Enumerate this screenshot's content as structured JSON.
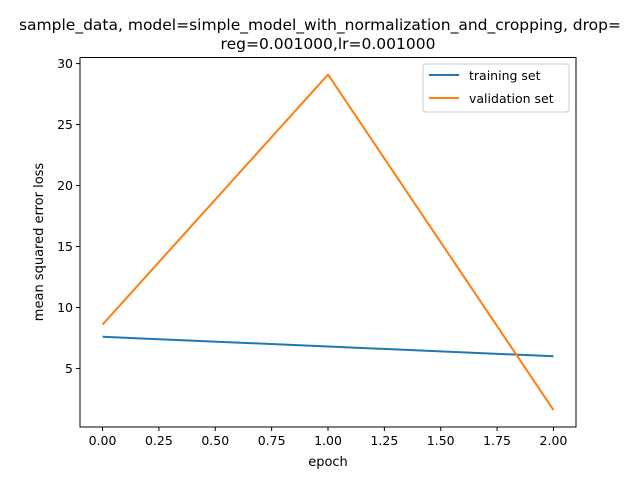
{
  "chart_data": {
    "type": "line",
    "title_line1": "sample_data, model=simple_model_with_normalization_and_cropping, drop=",
    "title_line2": "reg=0.001000,lr=0.001000",
    "xlabel": "epoch",
    "ylabel": "mean squared error loss",
    "xlim": [
      -0.1,
      2.1
    ],
    "ylim": [
      0.2,
      30.5
    ],
    "x_ticks": [
      0.0,
      0.25,
      0.5,
      0.75,
      1.0,
      1.25,
      1.5,
      1.75,
      2.0
    ],
    "x_tick_labels": [
      "0.00",
      "0.25",
      "0.50",
      "0.75",
      "1.00",
      "1.25",
      "1.50",
      "1.75",
      "2.00"
    ],
    "y_ticks": [
      5,
      10,
      15,
      20,
      25,
      30
    ],
    "y_tick_labels": [
      "5",
      "10",
      "15",
      "20",
      "25",
      "30"
    ],
    "legend_position": "top-right",
    "series": [
      {
        "name": "training set",
        "color": "#1f77b4",
        "x": [
          0,
          1,
          2
        ],
        "y": [
          7.6,
          6.8,
          6.0
        ]
      },
      {
        "name": "validation set",
        "color": "#ff7f0e",
        "x": [
          0,
          1,
          2
        ],
        "y": [
          8.6,
          29.1,
          1.6
        ]
      }
    ]
  }
}
